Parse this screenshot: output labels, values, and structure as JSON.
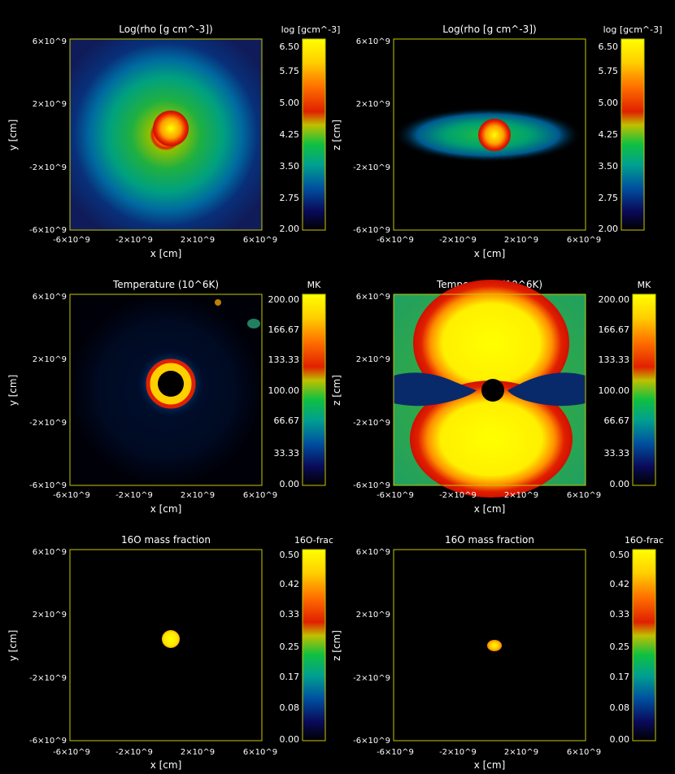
{
  "chart_data": [
    {
      "type": "heatmap",
      "title": "Log(rho [g cm^-3])",
      "xlabel": "x [cm]",
      "ylabel": "y [cm]",
      "xticks": [
        "-6×10^9",
        "-2×10^9",
        "2×10^9",
        "6×10^9"
      ],
      "yticks": [
        "6×10^9",
        "2×10^9",
        "-2×10^9",
        "-6×10^9"
      ],
      "xlim": [
        -6000000000.0,
        6000000000.0
      ],
      "ylim": [
        -6000000000.0,
        6000000000.0
      ],
      "colorbar": {
        "label": "log [gcm^-3]",
        "ticks": [
          "6.50",
          "5.75",
          "5.00",
          "4.25",
          "3.50",
          "2.75",
          "2.00"
        ],
        "range": [
          2.0,
          6.5
        ]
      },
      "structure": "spherical"
    },
    {
      "type": "heatmap",
      "title": "Log(rho [g cm^-3])",
      "xlabel": "x [cm]",
      "ylabel": "z [cm]",
      "xticks": [
        "-6×10^9",
        "-2×10^9",
        "2×10^9",
        "6×10^9"
      ],
      "yticks": [
        "6×10^9",
        "2×10^9",
        "-2×10^9",
        "-6×10^9"
      ],
      "xlim": [
        -6000000000.0,
        6000000000.0
      ],
      "ylim": [
        -6000000000.0,
        6000000000.0
      ],
      "colorbar": {
        "label": "log [gcm^-3]",
        "ticks": [
          "6.50",
          "5.75",
          "5.00",
          "4.25",
          "3.50",
          "2.75",
          "2.00"
        ],
        "range": [
          2.0,
          6.5
        ]
      },
      "structure": "disk"
    },
    {
      "type": "heatmap",
      "title": "Temperature (10^6K)",
      "xlabel": "x [cm]",
      "ylabel": "y [cm]",
      "xticks": [
        "-6×10^9",
        "-2×10^9",
        "2×10^9",
        "6×10^9"
      ],
      "yticks": [
        "6×10^9",
        "2×10^9",
        "-2×10^9",
        "-6×10^9"
      ],
      "xlim": [
        -6000000000.0,
        6000000000.0
      ],
      "ylim": [
        -6000000000.0,
        6000000000.0
      ],
      "colorbar": {
        "label": "MK",
        "ticks": [
          "200.00",
          "166.67",
          "133.33",
          "100.00",
          "66.67",
          "33.33",
          "0.00"
        ],
        "range": [
          0,
          200
        ]
      },
      "structure": "ring"
    },
    {
      "type": "heatmap",
      "title": "Temperature (10^6K)",
      "xlabel": "x [cm]",
      "ylabel": "z [cm]",
      "xticks": [
        "-6×10^9",
        "-2×10^9",
        "2×10^9",
        "6×10^9"
      ],
      "yticks": [
        "6×10^9",
        "2×10^9",
        "-2×10^9",
        "-6×10^9"
      ],
      "xlim": [
        -6000000000.0,
        6000000000.0
      ],
      "ylim": [
        -6000000000.0,
        6000000000.0
      ],
      "colorbar": {
        "label": "MK",
        "ticks": [
          "200.00",
          "166.67",
          "133.33",
          "100.00",
          "66.67",
          "33.33",
          "0.00"
        ],
        "range": [
          0,
          200
        ]
      },
      "structure": "bipolar"
    },
    {
      "type": "heatmap",
      "title": "16O mass fraction",
      "xlabel": "x [cm]",
      "ylabel": "y [cm]",
      "xticks": [
        "-6×10^9",
        "-2×10^9",
        "2×10^9",
        "6×10^9"
      ],
      "yticks": [
        "6×10^9",
        "2×10^9",
        "-2×10^9",
        "-6×10^9"
      ],
      "xlim": [
        -6000000000.0,
        6000000000.0
      ],
      "ylim": [
        -6000000000.0,
        6000000000.0
      ],
      "colorbar": {
        "label": "16O-frac",
        "ticks": [
          "0.50",
          "0.42",
          "0.33",
          "0.25",
          "0.17",
          "0.08",
          "0.00"
        ],
        "range": [
          0,
          0.5
        ]
      },
      "structure": "core"
    },
    {
      "type": "heatmap",
      "title": "16O mass fraction",
      "xlabel": "x [cm]",
      "ylabel": "z [cm]",
      "xticks": [
        "-6×10^9",
        "-2×10^9",
        "2×10^9",
        "6×10^9"
      ],
      "yticks": [
        "6×10^9",
        "2×10^9",
        "-2×10^9",
        "-6×10^9"
      ],
      "xlim": [
        -6000000000.0,
        6000000000.0
      ],
      "ylim": [
        -6000000000.0,
        6000000000.0
      ],
      "colorbar": {
        "label": "16O-frac",
        "ticks": [
          "0.50",
          "0.42",
          "0.33",
          "0.25",
          "0.17",
          "0.08",
          "0.00"
        ],
        "range": [
          0,
          0.5
        ]
      },
      "structure": "small-core"
    }
  ],
  "colors": {
    "axis": "#c8c800",
    "text": "#ffffff",
    "background": "#000000"
  }
}
